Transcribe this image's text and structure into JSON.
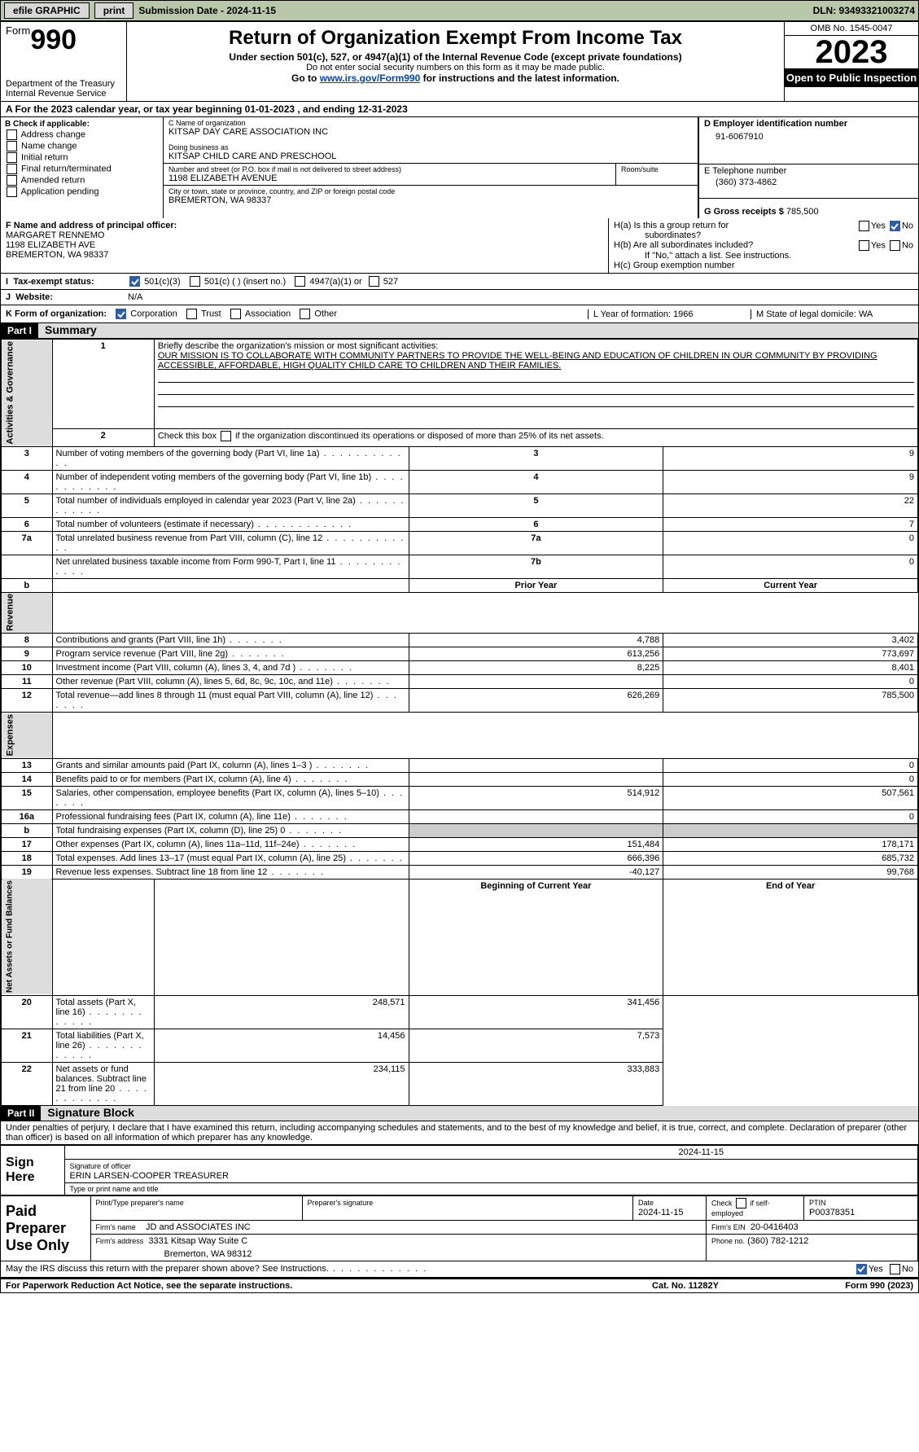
{
  "topbar": {
    "efile": "efile GRAPHIC",
    "print": "print",
    "submission": "Submission Date - 2024-11-15",
    "dln": "DLN: 93493321003274"
  },
  "header": {
    "form_word": "Form",
    "form_num": "990",
    "dept": "Department of the Treasury",
    "irs": "Internal Revenue Service",
    "title": "Return of Organization Exempt From Income Tax",
    "sub1": "Under section 501(c), 527, or 4947(a)(1) of the Internal Revenue Code (except private foundations)",
    "sub2": "Do not enter social security numbers on this form as it may be made public.",
    "sub3_pre": "Go to ",
    "sub3_link": "www.irs.gov/Form990",
    "sub3_post": " for instructions and the latest information.",
    "omb": "OMB No. 1545-0047",
    "year": "2023",
    "inspect": "Open to Public Inspection"
  },
  "row_a": "A For the 2023 calendar year, or tax year beginning 01-01-2023    , and ending 12-31-2023",
  "col_b": {
    "title": "B Check if applicable:",
    "opts": [
      "Address change",
      "Name change",
      "Initial return",
      "Final return/terminated",
      "Amended return",
      "Application pending"
    ]
  },
  "col_c": {
    "label_name": "C Name of organization",
    "name": "KITSAP DAY CARE ASSOCIATION INC",
    "dba_label": "Doing business as",
    "dba": "KITSAP CHILD CARE AND PRESCHOOL",
    "street_label": "Number and street (or P.O. box if mail is not delivered to street address)",
    "street": "1198 ELIZABETH AVENUE",
    "room_label": "Room/suite",
    "city_label": "City or town, state or province, country, and ZIP or foreign postal code",
    "city": "BREMERTON, WA  98337"
  },
  "col_d": {
    "label": "D Employer identification number",
    "value": "91-6067910"
  },
  "col_e": {
    "label": "E Telephone number",
    "value": "(360) 373-4862"
  },
  "col_g": {
    "label": "G Gross receipts $",
    "value": "785,500"
  },
  "sec_f": {
    "label": "F  Name and address of principal officer:",
    "name": "MARGARET RENNEMO",
    "addr1": "1198 ELIZABETH AVE",
    "addr2": "BREMERTON, WA  98337"
  },
  "sec_h": {
    "ha": "H(a)  Is this a group return for",
    "ha2": "subordinates?",
    "hb": "H(b)  Are all subordinates included?",
    "hb2": "If \"No,\" attach a list. See instructions.",
    "hc": "H(c)  Group exemption number",
    "yes": "Yes",
    "no": "No"
  },
  "tax_status": {
    "label": "Tax-exempt status:",
    "a": "501(c)(3)",
    "b": "501(c) (   ) (insert no.)",
    "c": "4947(a)(1) or",
    "d": "527"
  },
  "website": {
    "label": "Website:",
    "value": "N/A"
  },
  "row_k": {
    "label": "K Form of organization:",
    "opts": [
      "Corporation",
      "Trust",
      "Association",
      "Other"
    ],
    "l": "L Year of formation: 1966",
    "m": "M State of legal domicile: WA"
  },
  "part1": {
    "header": "Part I",
    "title": "Summary",
    "line1_label": "Briefly describe the organization's mission or most significant activities:",
    "mission": "OUR MISSION IS TO COLLABORATE WITH COMMUNITY PARTNERS TO PROVIDE THE WELL-BEING AND EDUCATION OF CHILDREN IN OUR COMMUNITY BY PROVIDING ACCESSIBLE, AFFORDABLE, HIGH QUALITY CHILD CARE TO CHILDREN AND THEIR FAMILIES.",
    "line2": "Check this box       if the organization discontinued its operations or disposed of more than 25% of its net assets.",
    "rows_ag": [
      {
        "n": "3",
        "t": "Number of voting members of the governing body (Part VI, line 1a)",
        "box": "3",
        "v": "9"
      },
      {
        "n": "4",
        "t": "Number of independent voting members of the governing body (Part VI, line 1b)",
        "box": "4",
        "v": "9"
      },
      {
        "n": "5",
        "t": "Total number of individuals employed in calendar year 2023 (Part V, line 2a)",
        "box": "5",
        "v": "22"
      },
      {
        "n": "6",
        "t": "Total number of volunteers (estimate if necessary)",
        "box": "6",
        "v": "7"
      },
      {
        "n": "7a",
        "t": "Total unrelated business revenue from Part VIII, column (C), line 12",
        "box": "7a",
        "v": "0"
      },
      {
        "n": "",
        "t": "Net unrelated business taxable income from Form 990-T, Part I, line 11",
        "box": "7b",
        "v": "0"
      }
    ],
    "hdr_prior": "Prior Year",
    "hdr_curr": "Current Year",
    "rev": [
      {
        "n": "8",
        "t": "Contributions and grants (Part VIII, line 1h)",
        "p": "4,788",
        "c": "3,402"
      },
      {
        "n": "9",
        "t": "Program service revenue (Part VIII, line 2g)",
        "p": "613,256",
        "c": "773,697"
      },
      {
        "n": "10",
        "t": "Investment income (Part VIII, column (A), lines 3, 4, and 7d )",
        "p": "8,225",
        "c": "8,401"
      },
      {
        "n": "11",
        "t": "Other revenue (Part VIII, column (A), lines 5, 6d, 8c, 9c, 10c, and 11e)",
        "p": "",
        "c": "0"
      },
      {
        "n": "12",
        "t": "Total revenue—add lines 8 through 11 (must equal Part VIII, column (A), line 12)",
        "p": "626,269",
        "c": "785,500"
      }
    ],
    "exp": [
      {
        "n": "13",
        "t": "Grants and similar amounts paid (Part IX, column (A), lines 1–3 )",
        "p": "",
        "c": "0"
      },
      {
        "n": "14",
        "t": "Benefits paid to or for members (Part IX, column (A), line 4)",
        "p": "",
        "c": "0"
      },
      {
        "n": "15",
        "t": "Salaries, other compensation, employee benefits (Part IX, column (A), lines 5–10)",
        "p": "514,912",
        "c": "507,561"
      },
      {
        "n": "16a",
        "t": "Professional fundraising fees (Part IX, column (A), line 11e)",
        "p": "",
        "c": "0"
      },
      {
        "n": "b",
        "t": "Total fundraising expenses (Part IX, column (D), line 25) 0",
        "p": "grey",
        "c": "grey"
      },
      {
        "n": "17",
        "t": "Other expenses (Part IX, column (A), lines 11a–11d, 11f–24e)",
        "p": "151,484",
        "c": "178,171"
      },
      {
        "n": "18",
        "t": "Total expenses. Add lines 13–17 (must equal Part IX, column (A), line 25)",
        "p": "666,396",
        "c": "685,732"
      },
      {
        "n": "19",
        "t": "Revenue less expenses. Subtract line 18 from line 12",
        "p": "-40,127",
        "c": "99,768"
      }
    ],
    "hdr_beg": "Beginning of Current Year",
    "hdr_end": "End of Year",
    "net": [
      {
        "n": "20",
        "t": "Total assets (Part X, line 16)",
        "p": "248,571",
        "c": "341,456"
      },
      {
        "n": "21",
        "t": "Total liabilities (Part X, line 26)",
        "p": "14,456",
        "c": "7,573"
      },
      {
        "n": "22",
        "t": "Net assets or fund balances. Subtract line 21 from line 20",
        "p": "234,115",
        "c": "333,883"
      }
    ],
    "vt_ag": "Activities & Governance",
    "vt_rev": "Revenue",
    "vt_exp": "Expenses",
    "vt_net": "Net Assets or Fund Balances"
  },
  "part2": {
    "header": "Part II",
    "title": "Signature Block",
    "decl": "Under penalties of perjury, I declare that I have examined this return, including accompanying schedules and statements, and to the best of my knowledge and belief, it is true, correct, and complete. Declaration of preparer (other than officer) is based on all information of which preparer has any knowledge.",
    "sign_here": "Sign Here",
    "sig_date": "2024-11-15",
    "sig_label": "Signature of officer",
    "officer": "ERIN LARSEN-COOPER  TREASURER",
    "type_label": "Type or print name and title",
    "paid": "Paid Preparer Use Only",
    "pp_name_label": "Print/Type preparer's name",
    "pp_sig_label": "Preparer's signature",
    "pp_date_label": "Date",
    "pp_date": "2024-11-15",
    "pp_check": "Check         if self-employed",
    "ptin_label": "PTIN",
    "ptin": "P00378351",
    "firm_name_label": "Firm's name",
    "firm_name": "JD and ASSOCIATES INC",
    "firm_ein_label": "Firm's EIN",
    "firm_ein": "20-0416403",
    "firm_addr_label": "Firm's address",
    "firm_addr": "3331 Kitsap Way Suite C",
    "firm_city": "Bremerton, WA  98312",
    "phone_label": "Phone no.",
    "phone": "(360) 782-1212",
    "discuss": "May the IRS discuss this return with the preparer shown above? See Instructions.",
    "yes": "Yes",
    "no": "No"
  },
  "footer": {
    "pra": "For Paperwork Reduction Act Notice, see the separate instructions.",
    "cat": "Cat. No. 11282Y",
    "form": "Form 990 (2023)"
  }
}
